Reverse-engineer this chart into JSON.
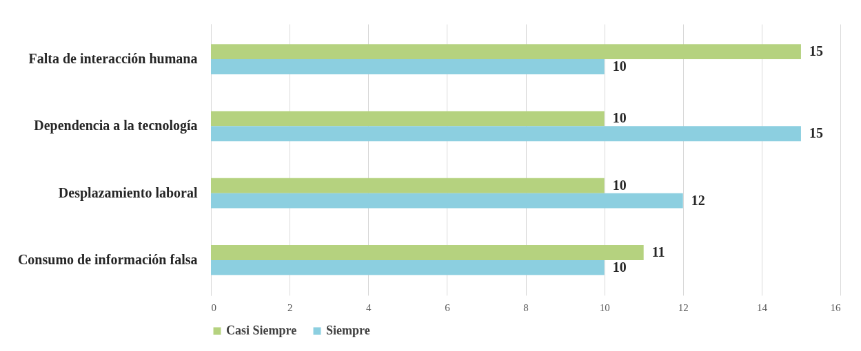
{
  "chart_data": {
    "type": "bar",
    "orientation": "horizontal",
    "categories": [
      "Falta de interacción humana",
      "Dependencia a la tecnología",
      "Desplazamiento laboral",
      "Consumo de información falsa"
    ],
    "series": [
      {
        "name": "Casi Siempre",
        "color": "#b5d27f",
        "values": [
          15,
          10,
          10,
          11
        ]
      },
      {
        "name": "Siempre",
        "color": "#8ccfe0",
        "values": [
          10,
          15,
          12,
          10
        ]
      }
    ],
    "xlim": [
      0,
      16
    ],
    "xticks": [
      0,
      2,
      4,
      6,
      8,
      10,
      12,
      14,
      16
    ],
    "grid": "x",
    "legend": "bottom",
    "data_labels": true
  }
}
